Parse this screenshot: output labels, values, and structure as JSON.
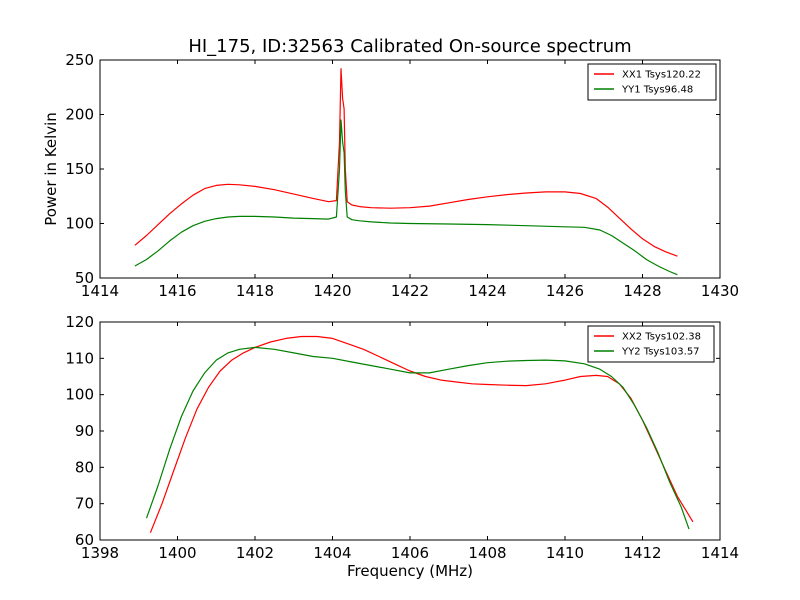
{
  "figure": {
    "title": "HI_175, ID:32563 Calibrated On-source spectrum",
    "xlabel": "Frequency (MHz)",
    "ylabel": "Power in Kelvin"
  },
  "chart_data": [
    {
      "type": "line",
      "panel": "top",
      "title": "HI_175, ID:32563 Calibrated On-source spectrum",
      "xlabel": "",
      "ylabel": "Power in Kelvin",
      "xlim": [
        1414,
        1430
      ],
      "ylim": [
        50,
        250
      ],
      "xticks": [
        1414,
        1416,
        1418,
        1420,
        1422,
        1424,
        1426,
        1428,
        1430
      ],
      "yticks": [
        50,
        100,
        150,
        200,
        250
      ],
      "grid": false,
      "legend_position": "top-right",
      "series": [
        {
          "name": "XX1 Tsys120.22",
          "color": "#ff0000",
          "x": [
            1414.9,
            1415.2,
            1415.5,
            1415.8,
            1416.1,
            1416.4,
            1416.7,
            1417.0,
            1417.3,
            1417.6,
            1418.0,
            1418.5,
            1419.0,
            1419.5,
            1419.9,
            1420.1,
            1420.18,
            1420.22,
            1420.26,
            1420.3,
            1420.33,
            1420.38,
            1420.5,
            1420.7,
            1421.0,
            1421.5,
            1422.0,
            1422.5,
            1423.0,
            1423.5,
            1424.0,
            1424.5,
            1425.0,
            1425.5,
            1426.0,
            1426.4,
            1426.8,
            1427.1,
            1427.4,
            1427.7,
            1428.0,
            1428.3,
            1428.6,
            1428.9
          ],
          "y": [
            80,
            89,
            99,
            109,
            118,
            126,
            132,
            135,
            136,
            135.5,
            134,
            131,
            127,
            123,
            120,
            121,
            175,
            242,
            215,
            205,
            150,
            120,
            117,
            115.5,
            114.5,
            114,
            114.5,
            116,
            119,
            122,
            124.5,
            126.5,
            128,
            129,
            129,
            127.5,
            123,
            115,
            105,
            95,
            86,
            79,
            74,
            70
          ]
        },
        {
          "name": "YY1 Tsys96.48",
          "color": "#008000",
          "x": [
            1414.9,
            1415.2,
            1415.5,
            1415.8,
            1416.1,
            1416.4,
            1416.7,
            1417.0,
            1417.3,
            1417.6,
            1418.0,
            1418.5,
            1419.0,
            1419.5,
            1419.9,
            1420.1,
            1420.18,
            1420.22,
            1420.26,
            1420.3,
            1420.33,
            1420.38,
            1420.5,
            1420.7,
            1421.0,
            1421.5,
            1422.0,
            1423.0,
            1424.0,
            1425.0,
            1426.0,
            1426.5,
            1426.9,
            1427.2,
            1427.5,
            1427.8,
            1428.1,
            1428.4,
            1428.7,
            1428.9
          ],
          "y": [
            61,
            67,
            75,
            84,
            92,
            98,
            102,
            104.5,
            106,
            106.5,
            106.5,
            106,
            105,
            104.5,
            104,
            106,
            150,
            195,
            175,
            165,
            130,
            106,
            103.5,
            102.5,
            101.5,
            100.5,
            100,
            99.5,
            99,
            98,
            97,
            96.5,
            94,
            89,
            82,
            75,
            67,
            61,
            56,
            53
          ]
        }
      ]
    },
    {
      "type": "line",
      "panel": "bottom",
      "title": "",
      "xlabel": "Frequency (MHz)",
      "ylabel": "",
      "xlim": [
        1398,
        1414
      ],
      "ylim": [
        60,
        120
      ],
      "xticks": [
        1398,
        1400,
        1402,
        1404,
        1406,
        1408,
        1410,
        1412,
        1414
      ],
      "yticks": [
        60,
        70,
        80,
        90,
        100,
        110,
        120
      ],
      "grid": false,
      "legend_position": "top-right",
      "series": [
        {
          "name": "XX2 Tsys102.38",
          "color": "#ff0000",
          "x": [
            1399.3,
            1399.6,
            1399.9,
            1400.2,
            1400.5,
            1400.8,
            1401.1,
            1401.4,
            1401.7,
            1402.0,
            1402.4,
            1402.8,
            1403.2,
            1403.6,
            1404.0,
            1404.4,
            1404.8,
            1405.2,
            1405.6,
            1406.0,
            1406.4,
            1406.8,
            1407.2,
            1407.6,
            1408.0,
            1408.5,
            1409.0,
            1409.5,
            1410.0,
            1410.4,
            1410.8,
            1411.1,
            1411.4,
            1411.7,
            1412.0,
            1412.3,
            1412.6,
            1412.9,
            1413.3
          ],
          "y": [
            62,
            70,
            79,
            88,
            96,
            102,
            106.5,
            109.5,
            111.5,
            113,
            114.5,
            115.5,
            116,
            116,
            115.5,
            114,
            112.5,
            110.5,
            108.5,
            106.5,
            105,
            104,
            103.5,
            103,
            102.8,
            102.6,
            102.5,
            103,
            104,
            105,
            105.3,
            105,
            103,
            99,
            93,
            86,
            79,
            72,
            65
          ]
        },
        {
          "name": "YY2 Tsys103.57",
          "color": "#008000",
          "x": [
            1399.2,
            1399.5,
            1399.8,
            1400.1,
            1400.4,
            1400.7,
            1401.0,
            1401.3,
            1401.6,
            1402.0,
            1402.5,
            1403.0,
            1403.5,
            1404.0,
            1404.5,
            1405.0,
            1405.5,
            1406.0,
            1406.5,
            1407.0,
            1407.5,
            1408.0,
            1408.5,
            1409.0,
            1409.5,
            1410.0,
            1410.5,
            1410.9,
            1411.2,
            1411.5,
            1411.8,
            1412.1,
            1412.4,
            1412.7,
            1413.0,
            1413.2
          ],
          "y": [
            66,
            75,
            85,
            94,
            101,
            106,
            109.5,
            111.5,
            112.5,
            113,
            112.5,
            111.5,
            110.5,
            110,
            109,
            108,
            107,
            106,
            106,
            107,
            108,
            108.8,
            109.2,
            109.4,
            109.5,
            109.3,
            108.5,
            107,
            105,
            102,
            97,
            91,
            84,
            76,
            69,
            63
          ]
        }
      ]
    }
  ]
}
